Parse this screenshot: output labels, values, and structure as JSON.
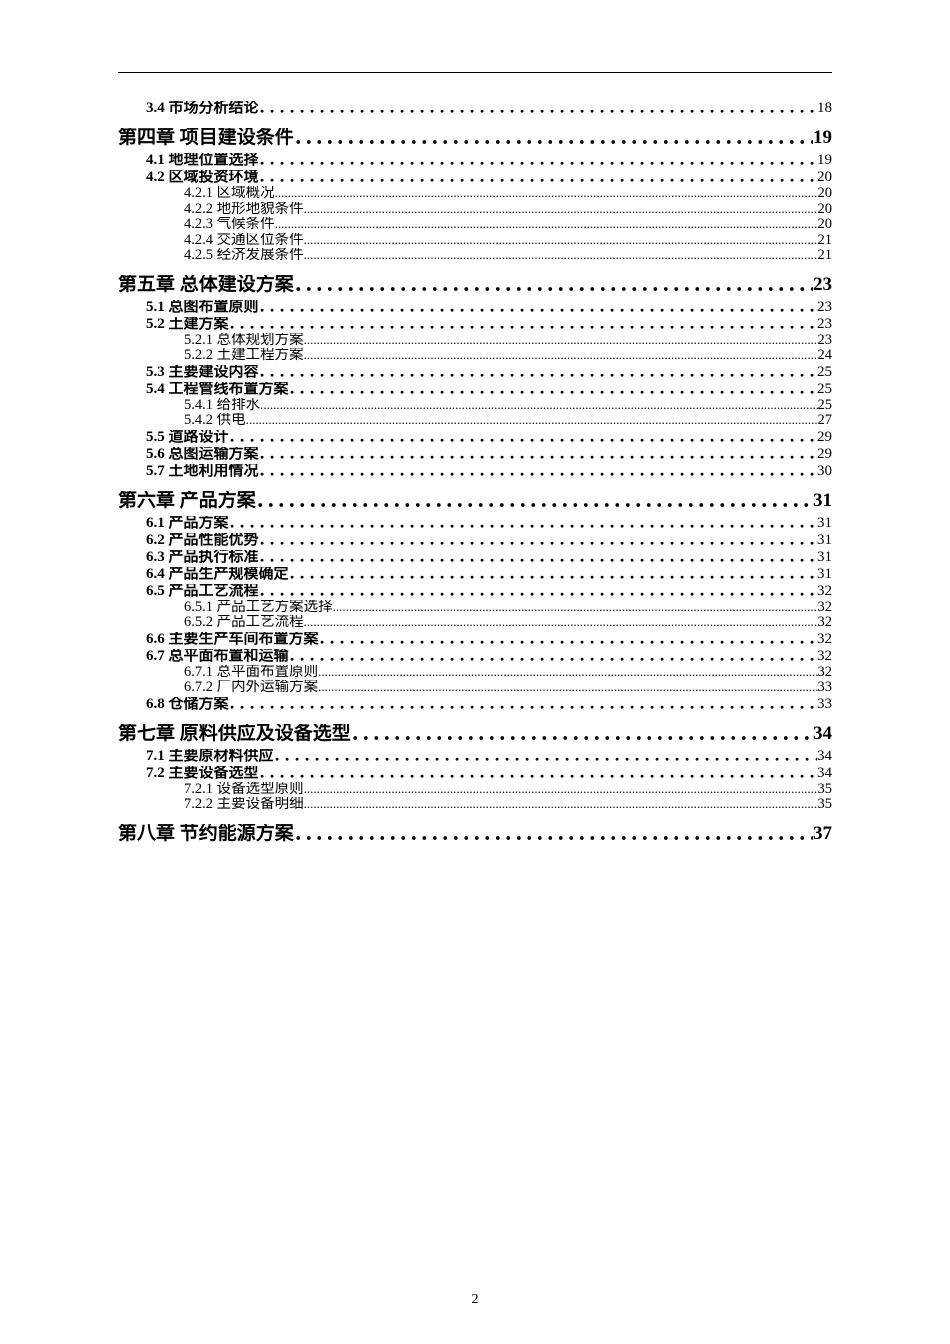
{
  "page_number": "2",
  "colors": {
    "text": "#000000",
    "bg": "#ffffff",
    "rule": "#000000"
  },
  "typography": {
    "l1_fontsize": 19,
    "l1_weight": "bold",
    "l2_fontsize": 15,
    "l2_weight": "bold",
    "l3_fontsize": 14.5,
    "l3_weight": "normal",
    "font_family": "SimSun"
  },
  "toc": [
    {
      "level": 2,
      "label": "3.4 市场分析结论",
      "page": "18"
    },
    {
      "level": 1,
      "label": "第四章 项目建设条件",
      "page": "19"
    },
    {
      "level": 2,
      "label": "4.1 地理位置选择",
      "page": "19"
    },
    {
      "level": 2,
      "label": "4.2 区域投资环境",
      "page": "20"
    },
    {
      "level": 3,
      "label": "4.2.1 区域概况",
      "page": "20"
    },
    {
      "level": 3,
      "label": "4.2.2 地形地貌条件",
      "page": "20"
    },
    {
      "level": 3,
      "label": "4.2.3 气候条件",
      "page": "20"
    },
    {
      "level": 3,
      "label": "4.2.4 交通区位条件",
      "page": "21"
    },
    {
      "level": 3,
      "label": "4.2.5 经济发展条件",
      "page": "21"
    },
    {
      "level": 1,
      "label": "第五章 总体建设方案",
      "page": "23"
    },
    {
      "level": 2,
      "label": "5.1 总图布置原则",
      "page": "23"
    },
    {
      "level": 2,
      "label": "5.2 土建方案",
      "page": "23"
    },
    {
      "level": 3,
      "label": "5.2.1 总体规划方案",
      "page": "23"
    },
    {
      "level": 3,
      "label": "5.2.2 土建工程方案",
      "page": "24"
    },
    {
      "level": 2,
      "label": "5.3 主要建设内容",
      "page": "25"
    },
    {
      "level": 2,
      "label": "5.4 工程管线布置方案",
      "page": "25"
    },
    {
      "level": 3,
      "label": "5.4.1 给排水",
      "page": "25"
    },
    {
      "level": 3,
      "label": "5.4.2 供电",
      "page": "27"
    },
    {
      "level": 2,
      "label": "5.5 道路设计",
      "page": "29"
    },
    {
      "level": 2,
      "label": "5.6 总图运输方案",
      "page": "29"
    },
    {
      "level": 2,
      "label": "5.7 土地利用情况",
      "page": "30"
    },
    {
      "level": 1,
      "label": "第六章 产品方案",
      "page": "31"
    },
    {
      "level": 2,
      "label": "6.1 产品方案",
      "page": "31"
    },
    {
      "level": 2,
      "label": "6.2 产品性能优势",
      "page": "31"
    },
    {
      "level": 2,
      "label": "6.3 产品执行标准",
      "page": "31"
    },
    {
      "level": 2,
      "label": "6.4 产品生产规模确定",
      "page": "31"
    },
    {
      "level": 2,
      "label": "6.5 产品工艺流程",
      "page": "32"
    },
    {
      "level": 3,
      "label": "6.5.1 产品工艺方案选择",
      "page": "32"
    },
    {
      "level": 3,
      "label": "6.5.2 产品工艺流程",
      "page": "32"
    },
    {
      "level": 2,
      "label": "6.6 主要生产车间布置方案",
      "page": "32"
    },
    {
      "level": 2,
      "label": "6.7 总平面布置和运输",
      "page": "32"
    },
    {
      "level": 3,
      "label": "6.7.1 总平面布置原则",
      "page": "32"
    },
    {
      "level": 3,
      "label": "6.7.2 厂内外运输方案",
      "page": "33"
    },
    {
      "level": 2,
      "label": "6.8 仓储方案",
      "page": "33"
    },
    {
      "level": 1,
      "label": "第七章 原料供应及设备选型",
      "page": "34"
    },
    {
      "level": 2,
      "label": "7.1 主要原材料供应",
      "page": "34"
    },
    {
      "level": 2,
      "label": "7.2 主要设备选型",
      "page": "34"
    },
    {
      "level": 3,
      "label": "7.2.1 设备选型原则",
      "page": "35"
    },
    {
      "level": 3,
      "label": "7.2.2 主要设备明细",
      "page": "35"
    },
    {
      "level": 1,
      "label": "第八章 节约能源方案",
      "page": "37"
    }
  ]
}
